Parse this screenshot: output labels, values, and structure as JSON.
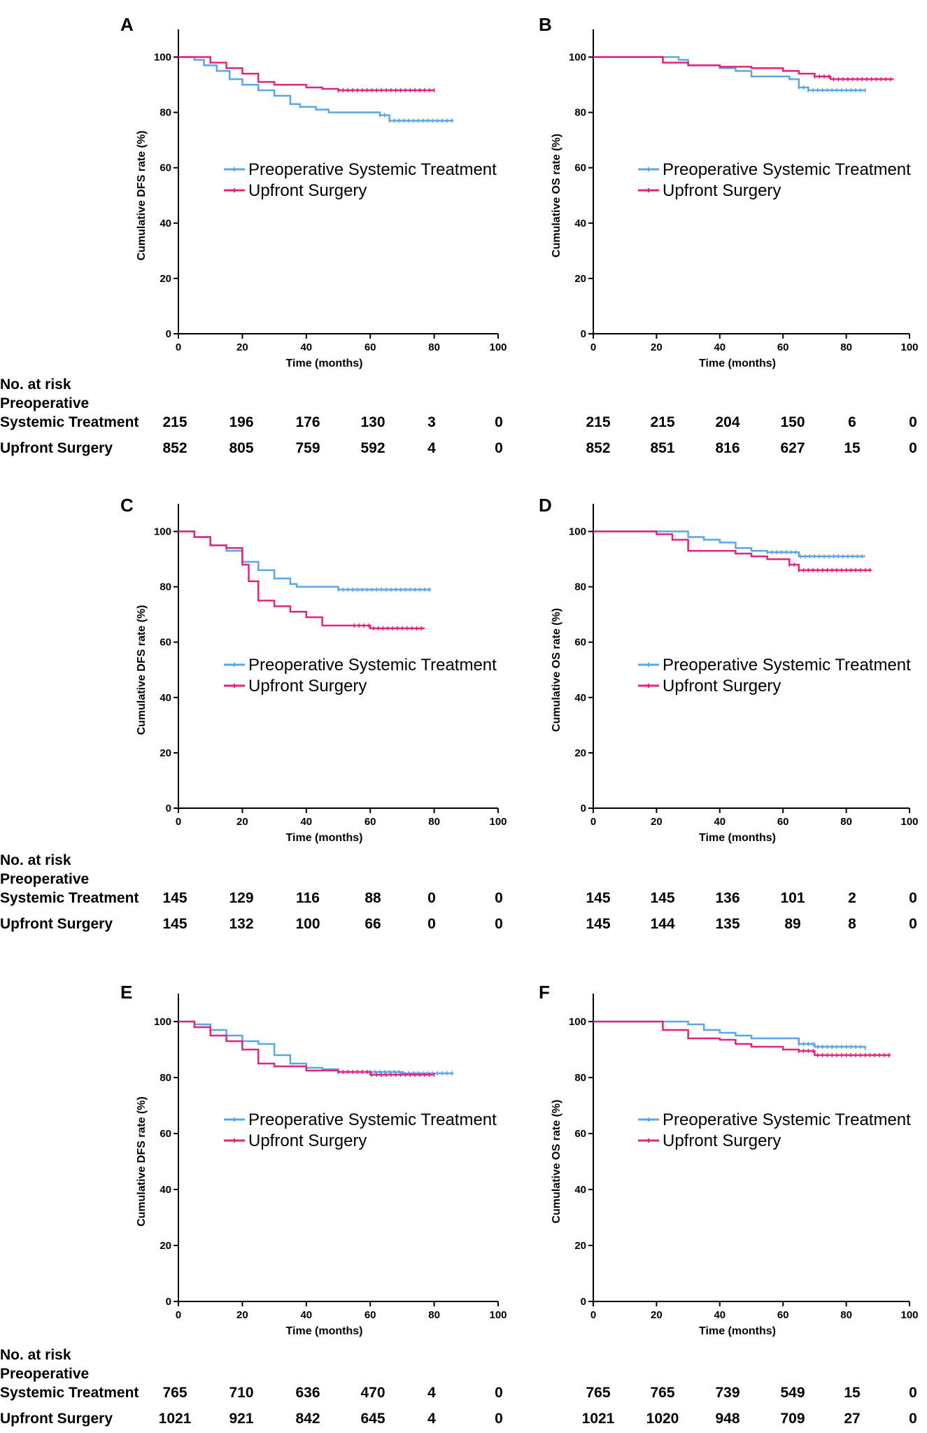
{
  "colors": {
    "preop": "#5aa7e8",
    "upfront": "#e5237a",
    "axis": "#000000"
  },
  "risk_table": {
    "title": "No. at risk",
    "group1_line1": "Preoperative",
    "group1_line2": "Systemic Treatment",
    "group2": "Upfront Surgery"
  },
  "chart_data": [
    {
      "panel": "A",
      "type": "line",
      "title": "",
      "xlabel": "Time (months)",
      "ylabel": "Cumulative DFS rate (%)",
      "xlim": [
        0,
        100
      ],
      "ylim": [
        0,
        110
      ],
      "xticks": [
        0,
        20,
        40,
        60,
        80,
        100
      ],
      "yticks": [
        0,
        20,
        40,
        60,
        80,
        100
      ],
      "legend_location": "middle-right",
      "series": [
        {
          "name": "Preoperative Systemic Treatment",
          "color_key": "preop",
          "x": [
            0,
            5,
            8,
            12,
            16,
            20,
            25,
            30,
            35,
            38,
            43,
            47,
            55,
            60,
            63,
            66,
            80,
            86
          ],
          "y": [
            100,
            99,
            97,
            95,
            92,
            90,
            88,
            86,
            83,
            82,
            81,
            80,
            80,
            80,
            79,
            77,
            77,
            77
          ]
        },
        {
          "name": "Upfront Surgery",
          "color_key": "upfront",
          "x": [
            0,
            5,
            10,
            15,
            20,
            25,
            30,
            40,
            45,
            50,
            60,
            70,
            80
          ],
          "y": [
            100,
            100,
            98,
            96,
            94,
            91,
            90,
            89,
            88.5,
            88,
            88,
            88,
            88
          ]
        }
      ],
      "risk_times": [
        0,
        20,
        40,
        60,
        80,
        100
      ],
      "risk_group1": [
        "215",
        "196",
        "176",
        "130",
        "3",
        "0"
      ],
      "risk_group2": [
        "852",
        "805",
        "759",
        "592",
        "4",
        "0"
      ]
    },
    {
      "panel": "B",
      "type": "line",
      "title": "",
      "xlabel": "Time (months)",
      "ylabel": "Cumulative OS rate (%)",
      "xlim": [
        0,
        100
      ],
      "ylim": [
        0,
        110
      ],
      "xticks": [
        0,
        20,
        40,
        60,
        80,
        100
      ],
      "yticks": [
        0,
        20,
        40,
        60,
        80,
        100
      ],
      "legend_location": "middle-right",
      "series": [
        {
          "name": "Preoperative Systemic Treatment",
          "color_key": "preop",
          "x": [
            0,
            20,
            27,
            30,
            40,
            45,
            50,
            55,
            62,
            65,
            68,
            80,
            86
          ],
          "y": [
            100,
            100,
            99,
            97,
            96,
            95,
            93,
            93,
            92,
            89,
            88,
            88,
            88
          ]
        },
        {
          "name": "Upfront Surgery",
          "color_key": "upfront",
          "x": [
            0,
            15,
            22,
            30,
            40,
            50,
            60,
            65,
            70,
            75,
            85,
            95
          ],
          "y": [
            100,
            100,
            98,
            97,
            96.5,
            96,
            95,
            94,
            93,
            92,
            92,
            92
          ]
        }
      ],
      "risk_times": [
        0,
        20,
        40,
        60,
        80,
        100
      ],
      "risk_group1": [
        "215",
        "215",
        "204",
        "150",
        "6",
        "0"
      ],
      "risk_group2": [
        "852",
        "851",
        "816",
        "627",
        "15",
        "0"
      ]
    },
    {
      "panel": "C",
      "type": "line",
      "title": "",
      "xlabel": "Time (months)",
      "ylabel": "Cumulative DFS rate (%)",
      "xlim": [
        0,
        100
      ],
      "ylim": [
        0,
        110
      ],
      "xticks": [
        0,
        20,
        40,
        60,
        80,
        100
      ],
      "yticks": [
        0,
        20,
        40,
        60,
        80,
        100
      ],
      "legend_location": "middle-right",
      "series": [
        {
          "name": "Preoperative Systemic Treatment",
          "color_key": "preop",
          "x": [
            0,
            5,
            10,
            15,
            20,
            25,
            30,
            35,
            37,
            45,
            50,
            60,
            70,
            79
          ],
          "y": [
            100,
            98,
            95,
            93,
            89,
            86,
            83,
            81,
            80,
            80,
            79,
            79,
            79,
            79
          ]
        },
        {
          "name": "Upfront Surgery",
          "color_key": "upfront",
          "x": [
            0,
            5,
            10,
            15,
            20,
            22,
            25,
            30,
            35,
            40,
            45,
            55,
            60,
            70,
            77
          ],
          "y": [
            100,
            98,
            95,
            94,
            88,
            82,
            75,
            73,
            71,
            69,
            66,
            66,
            65,
            65,
            65
          ]
        }
      ],
      "risk_times": [
        0,
        20,
        40,
        60,
        80,
        100
      ],
      "risk_group1": [
        "145",
        "129",
        "116",
        "88",
        "0",
        "0"
      ],
      "risk_group2": [
        "145",
        "132",
        "100",
        "66",
        "0",
        "0"
      ]
    },
    {
      "panel": "D",
      "type": "line",
      "title": "",
      "xlabel": "Time (months)",
      "ylabel": "Cumulative OS rate (%)",
      "xlim": [
        0,
        100
      ],
      "ylim": [
        0,
        110
      ],
      "xticks": [
        0,
        20,
        40,
        60,
        80,
        100
      ],
      "yticks": [
        0,
        20,
        40,
        60,
        80,
        100
      ],
      "legend_location": "middle-right",
      "series": [
        {
          "name": "Preoperative Systemic Treatment",
          "color_key": "preop",
          "x": [
            0,
            27,
            30,
            35,
            40,
            45,
            50,
            55,
            65,
            75,
            86
          ],
          "y": [
            100,
            100,
            98,
            97,
            96,
            94,
            93,
            92.5,
            91,
            91,
            91
          ]
        },
        {
          "name": "Upfront Surgery",
          "color_key": "upfront",
          "x": [
            0,
            15,
            20,
            25,
            30,
            40,
            45,
            50,
            55,
            62,
            65,
            75,
            88
          ],
          "y": [
            100,
            100,
            99,
            97,
            93,
            93,
            92,
            91,
            90,
            88,
            86,
            86,
            86
          ]
        }
      ],
      "risk_times": [
        0,
        20,
        40,
        60,
        80,
        100
      ],
      "risk_group1": [
        "145",
        "145",
        "136",
        "101",
        "2",
        "0"
      ],
      "risk_group2": [
        "145",
        "144",
        "135",
        "89",
        "8",
        "0"
      ]
    },
    {
      "panel": "E",
      "type": "line",
      "title": "",
      "xlabel": "Time (months)",
      "ylabel": "Cumulative DFS rate (%)",
      "xlim": [
        0,
        100
      ],
      "ylim": [
        0,
        110
      ],
      "xticks": [
        0,
        20,
        40,
        60,
        80,
        100
      ],
      "yticks": [
        0,
        20,
        40,
        60,
        80,
        100
      ],
      "legend_location": "middle-right",
      "series": [
        {
          "name": "Preoperative Systemic Treatment",
          "color_key": "preop",
          "x": [
            0,
            5,
            10,
            15,
            20,
            25,
            30,
            35,
            40,
            45,
            50,
            60,
            70,
            80,
            86
          ],
          "y": [
            100,
            99,
            97,
            95,
            93,
            92,
            88,
            85,
            83.5,
            83,
            82,
            82,
            81.5,
            81.5,
            81.5
          ]
        },
        {
          "name": "Upfront Surgery",
          "color_key": "upfront",
          "x": [
            0,
            5,
            10,
            15,
            20,
            25,
            30,
            40,
            50,
            60,
            70,
            80
          ],
          "y": [
            100,
            98,
            95,
            93,
            90,
            85,
            84,
            82.5,
            82,
            81,
            81,
            81
          ]
        }
      ],
      "risk_times": [
        0,
        20,
        40,
        60,
        80,
        100
      ],
      "risk_group1": [
        "765",
        "710",
        "636",
        "470",
        "4",
        "0"
      ],
      "risk_group2": [
        "1021",
        "921",
        "842",
        "645",
        "4",
        "0"
      ]
    },
    {
      "panel": "F",
      "type": "line",
      "title": "",
      "xlabel": "Time (months)",
      "ylabel": "Cumulative OS rate (%)",
      "xlim": [
        0,
        100
      ],
      "ylim": [
        0,
        110
      ],
      "xticks": [
        0,
        20,
        40,
        60,
        80,
        100
      ],
      "yticks": [
        0,
        20,
        40,
        60,
        80,
        100
      ],
      "legend_location": "middle-right",
      "series": [
        {
          "name": "Preoperative Systemic Treatment",
          "color_key": "preop",
          "x": [
            0,
            25,
            30,
            35,
            40,
            45,
            50,
            60,
            65,
            70,
            80,
            86
          ],
          "y": [
            100,
            100,
            99,
            97,
            96,
            95,
            94,
            94,
            92,
            91,
            91,
            90.5
          ]
        },
        {
          "name": "Upfront Surgery",
          "color_key": "upfront",
          "x": [
            0,
            20,
            22,
            30,
            40,
            45,
            50,
            60,
            65,
            70,
            80,
            94
          ],
          "y": [
            100,
            100,
            97,
            94,
            93.5,
            92,
            91,
            90,
            89.5,
            88,
            88,
            88
          ]
        }
      ],
      "risk_times": [
        0,
        20,
        40,
        60,
        80,
        100
      ],
      "risk_group1": [
        "765",
        "765",
        "739",
        "549",
        "15",
        "0"
      ],
      "risk_group2": [
        "1021",
        "1020",
        "948",
        "709",
        "27",
        "0"
      ]
    }
  ]
}
